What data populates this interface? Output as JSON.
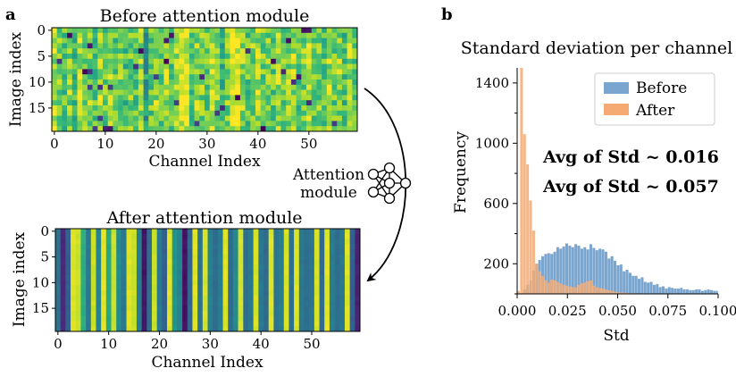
{
  "panel_a_label": "a",
  "panel_b_label": "b",
  "attention": {
    "label_line1": "Attention",
    "label_line2": "module",
    "icon": "neural-network-icon"
  },
  "chart_data": [
    {
      "type": "heatmap",
      "title": "Before attention module",
      "xlabel": "Channel Index",
      "ylabel": "Image index",
      "n_rows": 20,
      "n_cols": 60,
      "xticks": [
        0,
        10,
        20,
        30,
        40,
        50
      ],
      "yticks": [
        0,
        5,
        10,
        15
      ],
      "colormap": "viridis",
      "column_means": [
        0.86,
        0.8,
        0.74,
        0.82,
        0.7,
        0.88,
        0.78,
        0.8,
        0.72,
        0.84,
        0.76,
        0.83,
        0.74,
        0.79,
        0.7,
        0.78,
        0.74,
        0.81,
        0.55,
        0.76,
        0.85,
        0.72,
        0.84,
        0.74,
        0.86,
        0.95,
        0.96,
        0.75,
        0.82,
        0.8,
        0.74,
        0.9,
        0.8,
        0.66,
        0.78,
        0.95,
        0.96,
        0.82,
        0.74,
        0.8,
        0.85,
        0.77,
        0.8,
        0.74,
        0.86,
        0.76,
        0.82,
        0.84,
        0.72,
        0.8,
        0.93,
        0.78,
        0.8,
        0.72,
        0.86,
        0.76,
        0.82,
        0.68,
        0.84,
        0.74
      ],
      "row_variation": 0.16
    },
    {
      "type": "heatmap",
      "title": "After attention module",
      "xlabel": "Channel Index",
      "ylabel": "Image index",
      "n_rows": 20,
      "n_cols": 60,
      "xticks": [
        0,
        10,
        20,
        30,
        40,
        50
      ],
      "yticks": [
        0,
        5,
        10,
        15
      ],
      "colormap": "viridis",
      "column_means": [
        0.38,
        0.12,
        0.3,
        0.95,
        0.92,
        0.62,
        0.4,
        0.92,
        0.45,
        0.96,
        0.6,
        0.92,
        0.48,
        0.4,
        0.95,
        0.92,
        0.42,
        0.05,
        0.35,
        0.92,
        0.4,
        0.3,
        0.95,
        0.52,
        0.45,
        0.05,
        0.32,
        0.95,
        0.38,
        0.94,
        0.44,
        0.35,
        0.42,
        0.95,
        0.35,
        0.48,
        0.94,
        0.36,
        0.4,
        0.94,
        0.4,
        0.34,
        0.95,
        0.38,
        0.42,
        0.94,
        0.36,
        0.95,
        0.4,
        0.36,
        0.38,
        0.94,
        0.35,
        0.96,
        0.42,
        0.36,
        0.4,
        0.95,
        0.3,
        0.1
      ],
      "row_variation": 0.015
    },
    {
      "type": "histogram",
      "title": "Standard deviation per channel",
      "xlabel": "Std",
      "ylabel": "Frequency",
      "xlim": [
        0,
        0.1
      ],
      "ylim": [
        0,
        1500
      ],
      "xticks": [
        0.0,
        0.025,
        0.05,
        0.075,
        0.1
      ],
      "xtick_labels": [
        "0.000",
        "0.025",
        "0.050",
        "0.075",
        "0.100"
      ],
      "yticks": [
        200,
        600,
        1000,
        1400
      ],
      "legend_position": "top-right",
      "bin_width": 0.0015,
      "series": [
        {
          "name": "Before",
          "color": "#7aa5cf",
          "bin_start": 0.0,
          "counts": [
            0,
            5,
            30,
            60,
            90,
            155,
            200,
            225,
            250,
            265,
            270,
            265,
            280,
            310,
            300,
            315,
            335,
            320,
            310,
            330,
            320,
            300,
            310,
            295,
            330,
            305,
            290,
            300,
            295,
            280,
            235,
            250,
            220,
            190,
            195,
            150,
            160,
            140,
            120,
            120,
            100,
            110,
            80,
            75,
            80,
            60,
            65,
            45,
            50,
            35,
            45,
            40,
            35,
            35,
            40,
            30,
            30,
            25,
            25,
            30,
            30,
            20,
            25,
            30,
            25,
            20,
            20
          ]
        },
        {
          "name": "After",
          "color": "#f5aa73",
          "bin_start": 0.0,
          "counts": [
            20,
            1500,
            1060,
            860,
            620,
            420,
            200,
            150,
            120,
            90,
            75,
            95,
            90,
            80,
            70,
            60,
            55,
            50,
            45,
            45,
            60,
            70,
            75,
            85,
            90,
            55,
            45,
            40,
            35,
            30,
            25,
            20,
            15,
            10,
            10,
            8,
            6,
            5,
            4,
            3,
            3,
            2,
            2,
            1,
            1,
            1,
            0,
            0,
            0,
            0,
            0,
            0,
            0,
            0,
            0,
            0,
            0,
            0,
            0,
            0,
            0,
            0,
            0,
            0,
            0,
            0,
            0
          ]
        }
      ],
      "annotations": [
        {
          "text": "Avg of Std ~ 0.016",
          "color": "#e6782e"
        },
        {
          "text": "Avg of Std ~ 0.057",
          "color": "#3d73a9"
        }
      ]
    }
  ]
}
